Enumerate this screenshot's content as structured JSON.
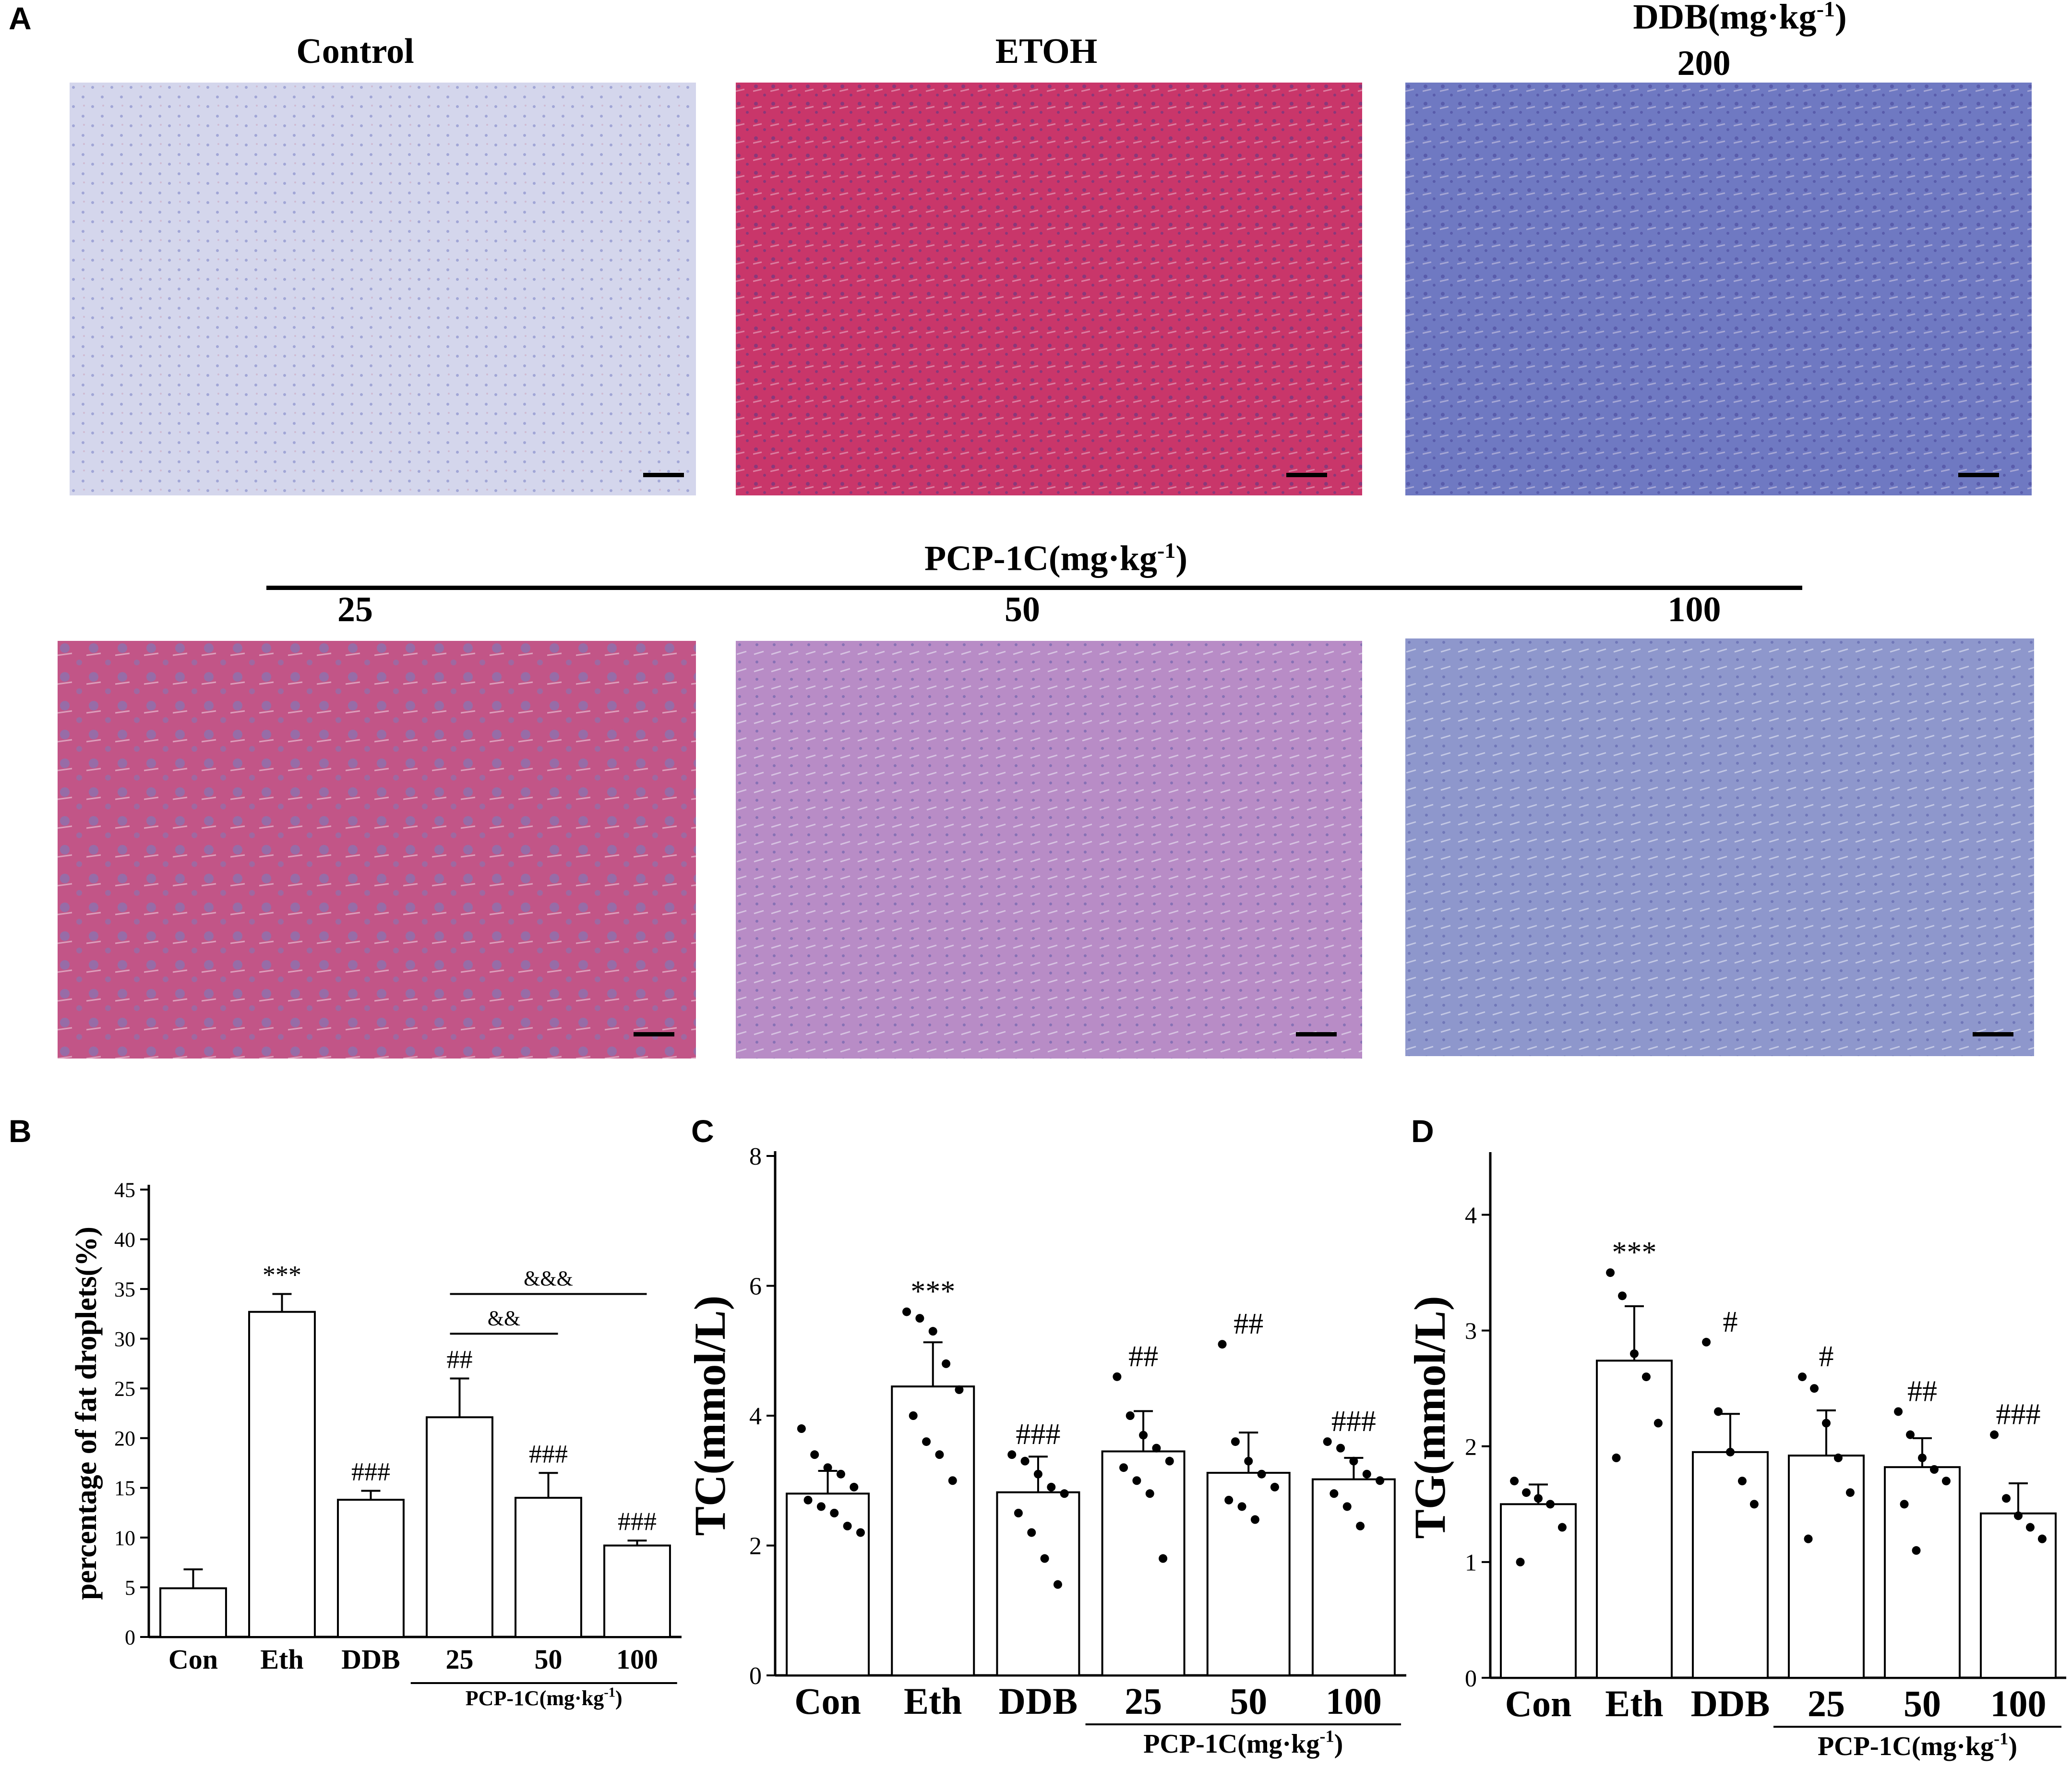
{
  "panels": {
    "a": "A",
    "b": "B",
    "c": "C",
    "d": "D"
  },
  "micrographs": {
    "titles": {
      "control": "Control",
      "etoh": "ETOH",
      "ddb_line1": "DDB(mg·kg",
      "ddb_sup": "-1",
      "ddb_line1_end": ")",
      "ddb_line2": "200",
      "pcp_group": "PCP-1C(mg·kg",
      "pcp_sup": "-1",
      "pcp_end": ")",
      "dose_25": "25",
      "dose_50": "50",
      "dose_100": "100"
    },
    "colors": {
      "control": "#d4d6ec",
      "etoh": "#c9366a",
      "ddb": "#6f79c2",
      "pcp25": "#c25587",
      "pcp50": "#b88cc6",
      "pcp100": "#8e97cc"
    }
  },
  "chart_data": [
    {
      "type": "bar",
      "panel": "B",
      "categories": [
        "Con",
        "Eth",
        "DDB",
        "25",
        "50",
        "100"
      ],
      "group_label": "PCP-1C(mg·kg",
      "group_sup": "-1",
      "group_end": ")",
      "values": [
        4.9,
        32.7,
        13.8,
        22.1,
        14.0,
        9.2
      ],
      "errors": [
        1.9,
        1.8,
        0.9,
        3.9,
        2.5,
        0.5
      ],
      "annotations": [
        "",
        "***",
        "###",
        "##",
        "###",
        "###"
      ],
      "comparisons": [
        {
          "from": "25",
          "to": "50",
          "label": "&&"
        },
        {
          "from": "25",
          "to": "100",
          "label": "&&&"
        }
      ],
      "ylabel": "percentage of fat droplets(%)",
      "ylim": [
        0,
        45
      ],
      "yticks": [
        "0",
        "5",
        "10",
        "15",
        "20",
        "25",
        "30",
        "35",
        "40",
        "45"
      ]
    },
    {
      "type": "bar",
      "panel": "C",
      "categories": [
        "Con",
        "Eth",
        "DDB",
        "25",
        "50",
        "100"
      ],
      "group_label": "PCP-1C(mg·kg",
      "group_sup": "-1",
      "group_end": ")",
      "values": [
        2.8,
        4.45,
        2.82,
        3.45,
        3.12,
        3.02
      ],
      "errors": [
        0.35,
        0.68,
        0.55,
        0.62,
        0.62,
        0.33
      ],
      "points": [
        [
          3.8,
          3.4,
          3.2,
          3.1,
          2.9,
          2.7,
          2.6,
          2.5,
          2.3,
          2.2
        ],
        [
          5.6,
          5.5,
          5.3,
          4.8,
          4.4,
          4.0,
          3.6,
          3.4,
          3.0
        ],
        [
          3.4,
          3.3,
          3.1,
          2.9,
          2.8,
          2.5,
          2.2,
          1.8,
          1.4
        ],
        [
          4.6,
          4.0,
          3.7,
          3.5,
          3.3,
          3.2,
          3.0,
          2.8,
          1.8
        ],
        [
          5.1,
          3.6,
          3.3,
          3.1,
          2.9,
          2.7,
          2.6,
          2.4
        ],
        [
          3.6,
          3.5,
          3.3,
          3.1,
          3.0,
          2.8,
          2.6,
          2.3
        ]
      ],
      "annotations": [
        "",
        "***",
        "###",
        "##",
        "##",
        "###"
      ],
      "ylabel": "TC(mmol/L)",
      "ylim": [
        0,
        8
      ],
      "yticks": [
        "0",
        "2",
        "4",
        "6",
        "8"
      ]
    },
    {
      "type": "bar",
      "panel": "D",
      "categories": [
        "Con",
        "Eth",
        "DDB",
        "25",
        "50",
        "100"
      ],
      "group_label": "PCP-1C(mg·kg",
      "group_sup": "-1",
      "group_end": ")",
      "values": [
        1.5,
        2.74,
        1.95,
        1.92,
        1.82,
        1.42
      ],
      "errors": [
        0.17,
        0.47,
        0.33,
        0.39,
        0.25,
        0.26
      ],
      "points": [
        [
          1.7,
          1.6,
          1.55,
          1.5,
          1.3,
          1.0
        ],
        [
          3.5,
          3.3,
          2.8,
          2.6,
          2.2,
          1.9
        ],
        [
          2.9,
          2.3,
          1.95,
          1.7,
          1.5
        ],
        [
          2.6,
          2.5,
          2.2,
          1.9,
          1.6,
          1.2
        ],
        [
          2.3,
          2.1,
          1.9,
          1.8,
          1.7,
          1.5,
          1.1
        ],
        [
          2.1,
          1.55,
          1.4,
          1.3,
          1.2
        ]
      ],
      "annotations": [
        "",
        "***",
        "#",
        "#",
        "##",
        "###"
      ],
      "ylabel": "TG(mmol/L)",
      "ylim": [
        0,
        4.5
      ],
      "yticks": [
        "0",
        "1",
        "2",
        "3",
        "4"
      ]
    }
  ]
}
